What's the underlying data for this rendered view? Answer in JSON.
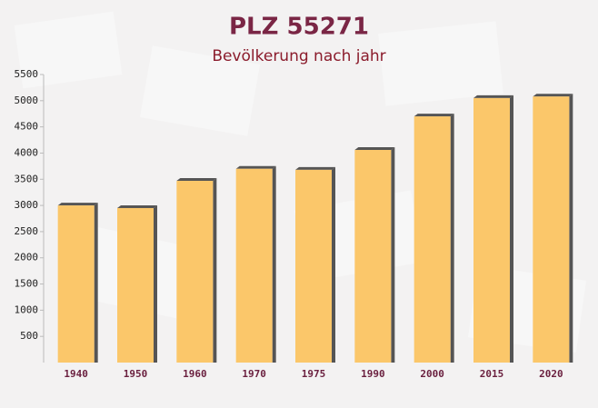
{
  "chart_data": {
    "type": "bar",
    "title": "PLZ 55271",
    "subtitle": "Bevölkerung nach jahr",
    "categories": [
      "1940",
      "1950",
      "1960",
      "1970",
      "1975",
      "1990",
      "2000",
      "2015",
      "2020"
    ],
    "values": [
      3000,
      2950,
      3470,
      3700,
      3680,
      4060,
      4700,
      5050,
      5080
    ],
    "color": "#fbc76a",
    "ylim": [
      0,
      5500
    ],
    "yticks": [
      500,
      1000,
      1500,
      2000,
      2500,
      3000,
      3500,
      4000,
      4500,
      5000,
      5500
    ],
    "grid": false
  }
}
